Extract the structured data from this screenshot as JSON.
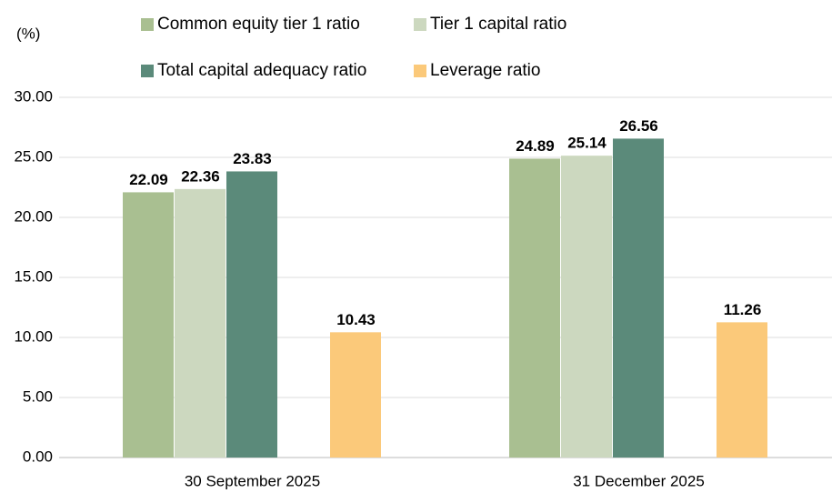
{
  "chart_data": {
    "type": "bar",
    "y_axis_label": "(%)",
    "categories": [
      "30 September 2025",
      "31 December 2025"
    ],
    "series": [
      {
        "name": "Common equity tier 1 ratio",
        "color": "#a9bf91",
        "values": [
          22.09,
          24.89
        ]
      },
      {
        "name": "Tier 1 capital ratio",
        "color": "#ccd8bf",
        "values": [
          22.36,
          25.14
        ]
      },
      {
        "name": "Total capital adequacy ratio",
        "color": "#5b8a7a",
        "values": [
          23.83,
          26.56
        ]
      },
      {
        "name": "Leverage ratio",
        "color": "#fbc97a",
        "values": [
          10.43,
          11.26
        ]
      }
    ],
    "ylim": [
      0,
      30
    ],
    "yticks": [
      {
        "value": 0,
        "label": "0.00"
      },
      {
        "value": 5,
        "label": "5.00"
      },
      {
        "value": 10,
        "label": "10.00"
      },
      {
        "value": 15,
        "label": "15.00"
      },
      {
        "value": 20,
        "label": "20.00"
      },
      {
        "value": 25,
        "label": "25.00"
      },
      {
        "value": 30,
        "label": "30.00"
      }
    ],
    "grid": true
  }
}
